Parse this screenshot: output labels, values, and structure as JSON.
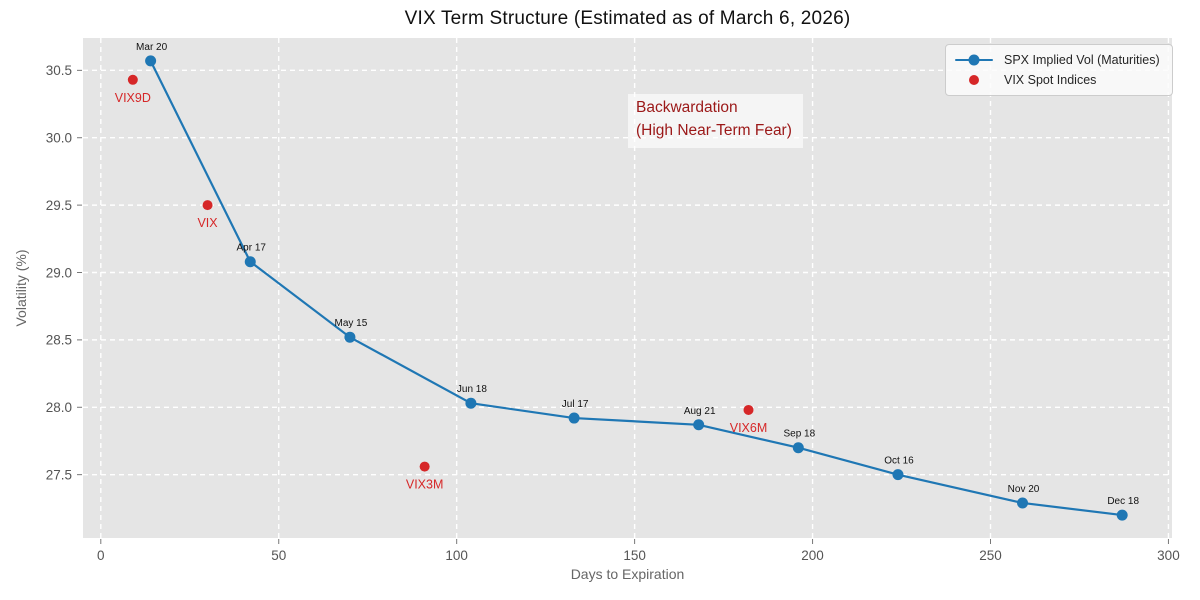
{
  "chart_data": {
    "type": "line",
    "title": "VIX Term Structure (Estimated as of March 6, 2026)",
    "xlabel": "Days to Expiration",
    "ylabel": "Volatility (%)",
    "xlim": [
      -5,
      301
    ],
    "ylim": [
      27.03,
      30.74
    ],
    "xticks": [
      0,
      50,
      100,
      150,
      200,
      250,
      300
    ],
    "yticks": [
      27.5,
      28.0,
      28.5,
      29.0,
      29.5,
      30.0,
      30.5
    ],
    "grid": true,
    "grid_style": "white dashed gridlines on light gray panel",
    "legend_position": "upper-right",
    "annotation": {
      "line1": "Backwardation",
      "line2": "(High Near-Term Fear)",
      "color": "#9b1818"
    },
    "series": [
      {
        "name": "SPX Implied Vol (Maturities)",
        "type": "line+markers",
        "color": "#1f77b4",
        "label_color": "#111111",
        "points": [
          {
            "x": 14,
            "y": 30.57,
            "label": "Mar 20"
          },
          {
            "x": 42,
            "y": 29.08,
            "label": "Apr 17"
          },
          {
            "x": 70,
            "y": 28.52,
            "label": "May 15"
          },
          {
            "x": 104,
            "y": 28.03,
            "label": "Jun 18"
          },
          {
            "x": 133,
            "y": 27.92,
            "label": "Jul 17"
          },
          {
            "x": 168,
            "y": 27.87,
            "label": "Aug 21"
          },
          {
            "x": 196,
            "y": 27.7,
            "label": "Sep 18"
          },
          {
            "x": 224,
            "y": 27.5,
            "label": "Oct 16"
          },
          {
            "x": 259,
            "y": 27.29,
            "label": "Nov 20"
          },
          {
            "x": 287,
            "y": 27.2,
            "label": "Dec 18"
          }
        ]
      },
      {
        "name": "VIX Spot Indices",
        "type": "scatter",
        "color": "#d62728",
        "label_color": "#d62728",
        "points": [
          {
            "x": 9,
            "y": 30.43,
            "label": "VIX9D"
          },
          {
            "x": 30,
            "y": 29.5,
            "label": "VIX"
          },
          {
            "x": 91,
            "y": 27.56,
            "label": "VIX3M"
          },
          {
            "x": 182,
            "y": 27.98,
            "label": "VIX6M"
          }
        ]
      }
    ],
    "colors": {
      "panel_bg": "#e5e5e5",
      "grid": "#ffffff",
      "tick_label": "#555555",
      "axis_label": "#666666",
      "title": "#111111"
    }
  }
}
